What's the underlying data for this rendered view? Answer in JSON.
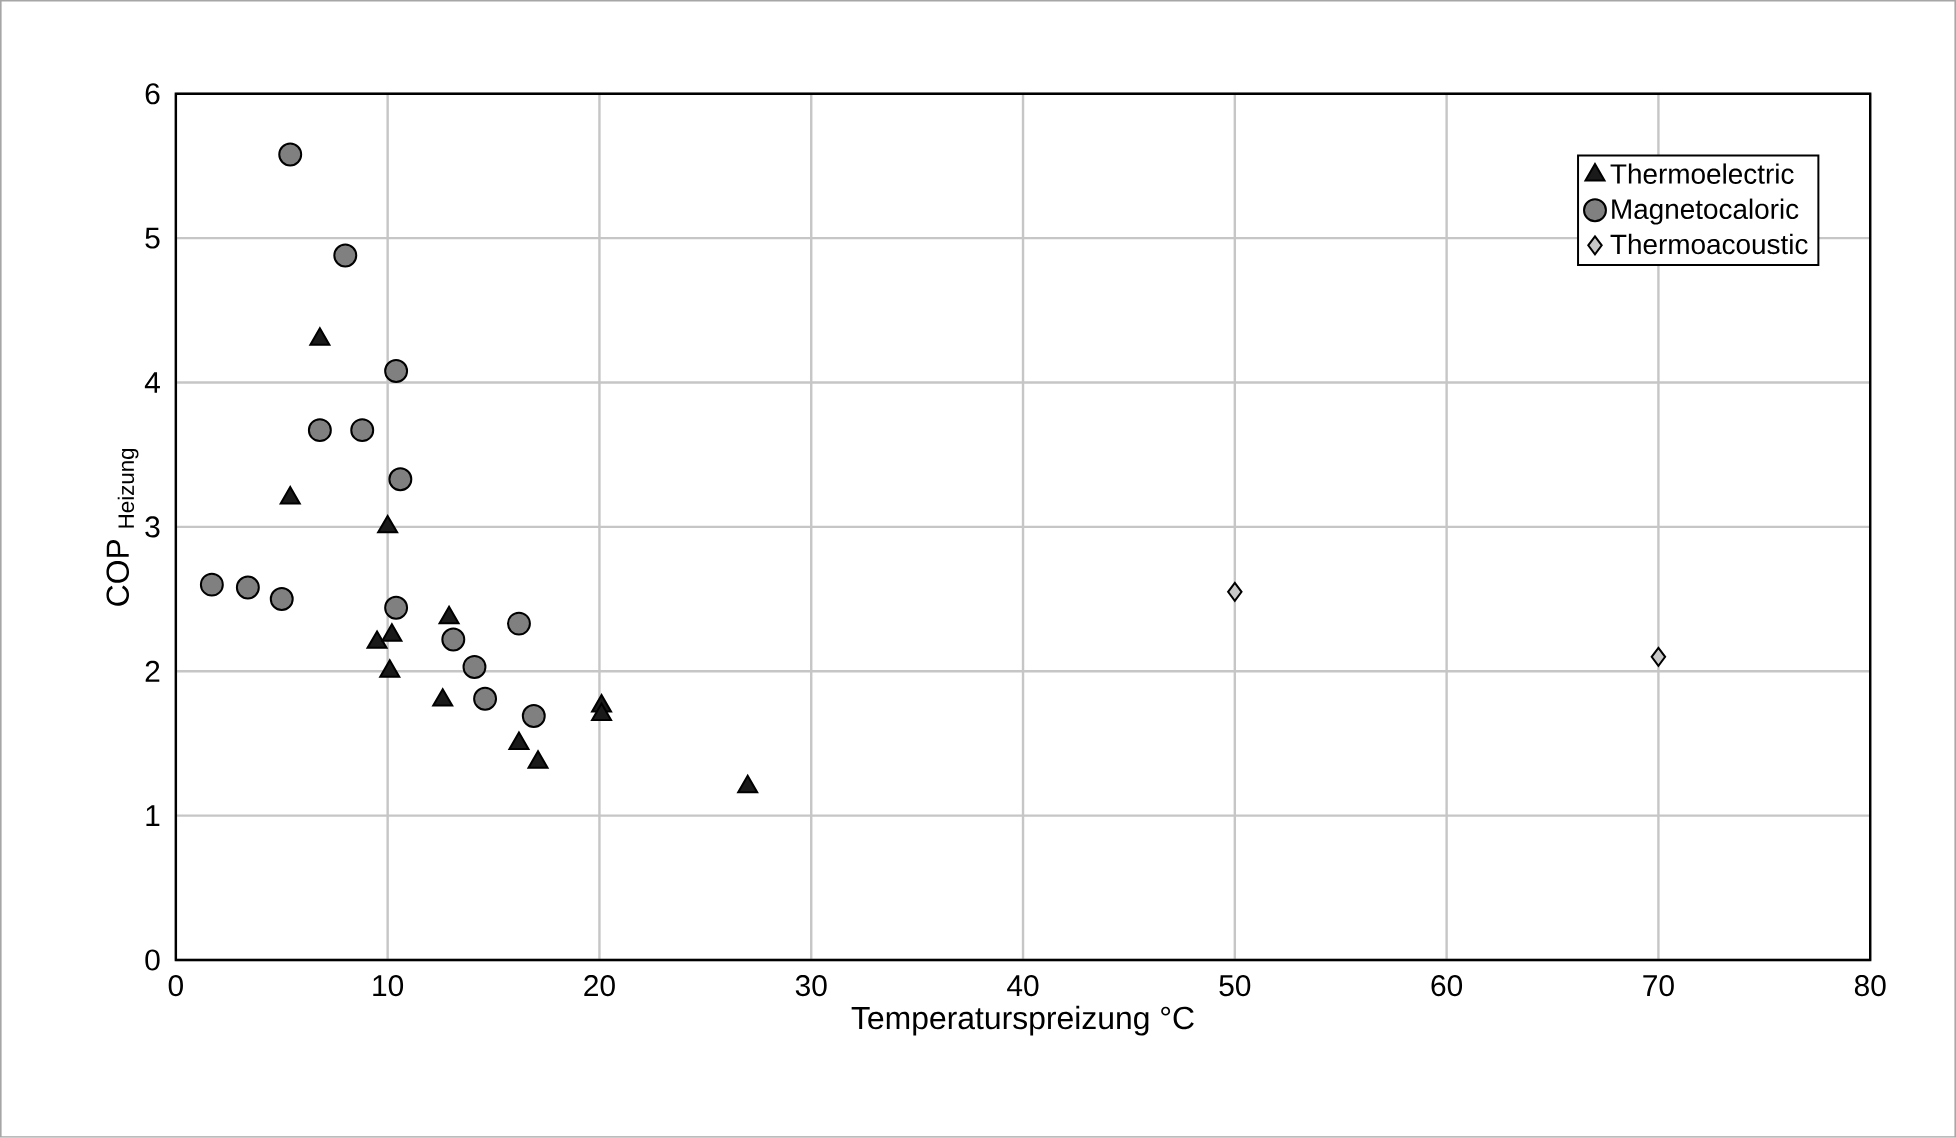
{
  "chart_data": {
    "type": "scatter",
    "xlabel": "Temperaturspreizung  °C",
    "ylabel": "COP $_{Heizung}$",
    "xlim": [
      0,
      80
    ],
    "ylim": [
      0,
      6
    ],
    "xticks": [
      0,
      10,
      20,
      30,
      40,
      50,
      60,
      70,
      80
    ],
    "yticks": [
      0,
      1,
      2,
      3,
      4,
      5,
      6
    ],
    "grid": true,
    "legend": "top right",
    "series": [
      {
        "name": "Thermoelectric",
        "color": "#1a1a1a",
        "marker": "triangle",
        "x": [
          6.8,
          5.4,
          10.0,
          12.9,
          9.5,
          10.2,
          10.1,
          12.6,
          16.2,
          17.1,
          20.1,
          20.1,
          27.0
        ],
        "values": [
          4.3,
          3.2,
          3.0,
          2.37,
          2.2,
          2.25,
          2.0,
          1.8,
          1.5,
          1.37,
          1.76,
          1.7,
          1.2
        ]
      },
      {
        "name": "Magnetocaloric",
        "color": "#808080",
        "marker": "circle",
        "x": [
          5.4,
          8.0,
          10.4,
          6.8,
          8.8,
          10.6,
          1.7,
          3.4,
          5.0,
          10.4,
          16.2,
          13.1,
          14.1,
          14.6,
          16.9
        ],
        "values": [
          5.58,
          4.88,
          4.08,
          3.67,
          3.67,
          3.33,
          2.6,
          2.58,
          2.5,
          2.44,
          2.33,
          2.22,
          2.03,
          1.81,
          1.69
        ]
      },
      {
        "name": "Thermoacoustic",
        "color": "#c8c8c8",
        "marker": "diamond",
        "x": [
          50,
          70
        ],
        "values": [
          2.55,
          2.1
        ]
      }
    ]
  }
}
